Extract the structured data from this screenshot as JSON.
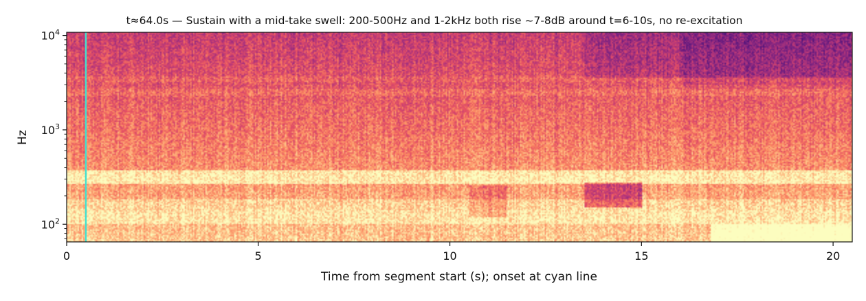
{
  "chart_data": {
    "type": "heatmap",
    "title": "t≈64.0s — Sustain with a mid-take swell: 200-500Hz and 1-2kHz both rise ~7-8dB around t=6-10s, no re-excitation",
    "xlabel": "Time from segment start (s); onset at cyan line",
    "ylabel": "Hz",
    "xlim": [
      0,
      20.5
    ],
    "ylim": [
      65,
      10800
    ],
    "yscale": "log",
    "x_ticks": [
      {
        "value": 0,
        "label": "0"
      },
      {
        "value": 5,
        "label": "5"
      },
      {
        "value": 10,
        "label": "10"
      },
      {
        "value": 15,
        "label": "15"
      },
      {
        "value": 20,
        "label": "20"
      }
    ],
    "y_ticks": [
      {
        "value": 100,
        "mantissa": "10",
        "exponent": "2"
      },
      {
        "value": 1000,
        "mantissa": "10",
        "exponent": "3"
      },
      {
        "value": 10000,
        "mantissa": "10",
        "exponent": "4"
      }
    ],
    "onset_line_s": 0.5,
    "onset_color": "#40e0d0",
    "colormap": "magma",
    "grid": false,
    "legend": "none"
  }
}
